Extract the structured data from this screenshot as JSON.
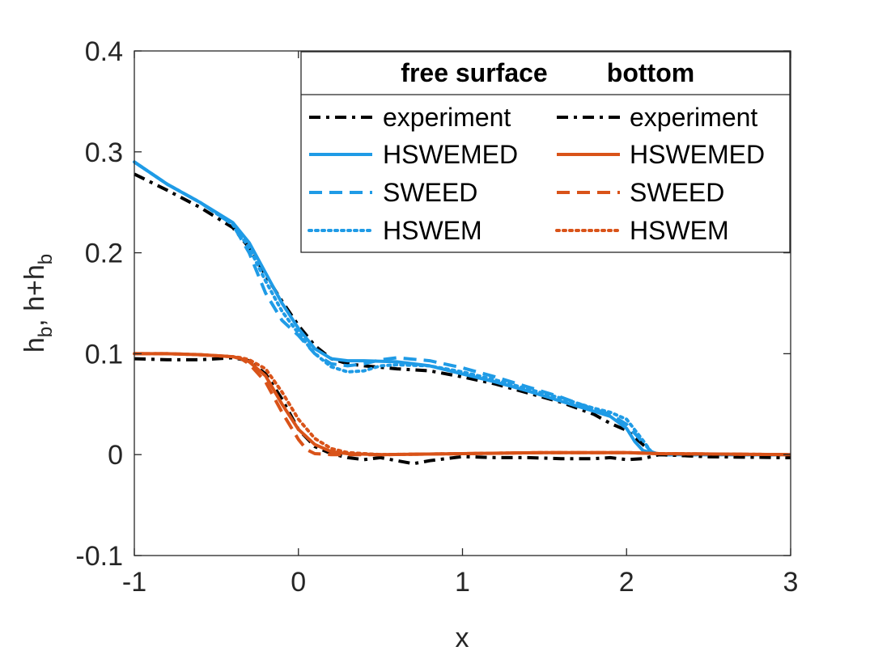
{
  "chart_data": {
    "type": "line",
    "title": "",
    "xlabel": "x",
    "ylabel_main": "h",
    "ylabel_sub1": "b",
    "ylabel_mid": ", h+h",
    "ylabel_sub2": "b",
    "xlim": [
      -1,
      3
    ],
    "ylim": [
      -0.1,
      0.4
    ],
    "xticks": [
      -1,
      0,
      1,
      2,
      3
    ],
    "xtick_labels": [
      "-1",
      "0",
      "1",
      "2",
      "3"
    ],
    "yticks": [
      -0.1,
      0,
      0.1,
      0.2,
      0.3,
      0.4
    ],
    "ytick_labels": [
      "-0.1",
      "0",
      "0.1",
      "0.2",
      "0.3",
      "0.4"
    ],
    "grid": false,
    "legend": {
      "placement": "top-right",
      "headers": [
        "free surface",
        "bottom"
      ],
      "rows": [
        "experiment",
        "HSWEMED",
        "SWEED",
        "HSWEM"
      ]
    },
    "colors": {
      "blue": "#1f9be6",
      "orange": "#d95319",
      "black": "#000000"
    },
    "series": [
      {
        "name": "experiment",
        "group": "free surface",
        "color": "#000000",
        "dash": "dashdot",
        "x": [
          -1,
          -0.8,
          -0.6,
          -0.4,
          -0.3,
          -0.2,
          -0.1,
          0,
          0.1,
          0.2,
          0.3,
          0.4,
          0.6,
          0.8,
          1.0,
          1.2,
          1.4,
          1.6,
          1.8,
          1.9,
          2.0,
          2.1,
          2.15,
          2.2,
          2.5,
          3.0
        ],
        "y": [
          0.278,
          0.262,
          0.245,
          0.225,
          0.205,
          0.178,
          0.152,
          0.128,
          0.108,
          0.095,
          0.09,
          0.088,
          0.085,
          0.083,
          0.077,
          0.07,
          0.061,
          0.052,
          0.04,
          0.031,
          0.024,
          0.01,
          0.002,
          0.0,
          -0.002,
          -0.003
        ]
      },
      {
        "name": "HSWEMED",
        "group": "free surface",
        "color": "#1f9be6",
        "dash": "solid",
        "x": [
          -1,
          -0.8,
          -0.6,
          -0.4,
          -0.3,
          -0.2,
          -0.1,
          0,
          0.1,
          0.2,
          0.3,
          0.4,
          0.6,
          0.8,
          1.0,
          1.2,
          1.4,
          1.6,
          1.8,
          1.9,
          2.0,
          2.05,
          2.1,
          2.2,
          3.0
        ],
        "y": [
          0.29,
          0.268,
          0.25,
          0.23,
          0.21,
          0.18,
          0.15,
          0.125,
          0.105,
          0.095,
          0.093,
          0.093,
          0.092,
          0.088,
          0.08,
          0.072,
          0.063,
          0.053,
          0.043,
          0.038,
          0.026,
          0.013,
          0.004,
          0.0,
          0.0
        ]
      },
      {
        "name": "SWEED",
        "group": "free surface",
        "color": "#1f9be6",
        "dash": "dashed",
        "x": [
          -1,
          -0.8,
          -0.6,
          -0.4,
          -0.3,
          -0.2,
          -0.1,
          0,
          0.1,
          0.2,
          0.3,
          0.4,
          0.5,
          0.6,
          0.8,
          1.0,
          1.2,
          1.4,
          1.6,
          1.8,
          1.9,
          2.0,
          2.1,
          2.15,
          2.2,
          3.0
        ],
        "y": [
          0.29,
          0.268,
          0.25,
          0.228,
          0.2,
          0.16,
          0.133,
          0.118,
          0.1,
          0.09,
          0.088,
          0.09,
          0.094,
          0.096,
          0.093,
          0.086,
          0.077,
          0.067,
          0.057,
          0.045,
          0.04,
          0.03,
          0.012,
          0.003,
          0.0,
          0.0
        ]
      },
      {
        "name": "HSWEM",
        "group": "free surface",
        "color": "#1f9be6",
        "dash": "dotted",
        "x": [
          -1,
          -0.8,
          -0.6,
          -0.4,
          -0.3,
          -0.2,
          -0.1,
          0,
          0.1,
          0.2,
          0.3,
          0.4,
          0.5,
          0.6,
          0.8,
          1.0,
          1.2,
          1.4,
          1.6,
          1.8,
          1.9,
          2.0,
          2.1,
          2.15,
          2.2,
          3.0
        ],
        "y": [
          0.29,
          0.268,
          0.25,
          0.228,
          0.205,
          0.172,
          0.142,
          0.12,
          0.1,
          0.087,
          0.082,
          0.083,
          0.088,
          0.089,
          0.088,
          0.082,
          0.074,
          0.065,
          0.056,
          0.046,
          0.042,
          0.035,
          0.014,
          0.003,
          0.0,
          0.0
        ]
      },
      {
        "name": "experiment",
        "group": "bottom",
        "color": "#000000",
        "dash": "dashdot",
        "x": [
          -1,
          -0.8,
          -0.6,
          -0.4,
          -0.3,
          -0.2,
          -0.1,
          0,
          0.1,
          0.2,
          0.3,
          0.4,
          0.5,
          0.6,
          0.7,
          0.8,
          1.0,
          1.2,
          1.4,
          1.6,
          1.8,
          1.9,
          2.0,
          2.1,
          2.2,
          2.5,
          3.0
        ],
        "y": [
          0.095,
          0.094,
          0.094,
          0.096,
          0.093,
          0.08,
          0.055,
          0.025,
          0.008,
          0.001,
          -0.003,
          -0.005,
          -0.003,
          -0.006,
          -0.009,
          -0.006,
          -0.002,
          -0.003,
          -0.003,
          -0.004,
          -0.004,
          -0.003,
          -0.005,
          -0.004,
          0.0,
          -0.002,
          -0.003
        ]
      },
      {
        "name": "HSWEMED",
        "group": "bottom",
        "color": "#d95319",
        "dash": "solid",
        "x": [
          -1,
          -0.8,
          -0.6,
          -0.4,
          -0.35,
          -0.3,
          -0.2,
          -0.1,
          0,
          0.1,
          0.2,
          0.3,
          0.5,
          1.0,
          1.5,
          2.0,
          2.2,
          3.0
        ],
        "y": [
          0.1,
          0.1,
          0.099,
          0.097,
          0.095,
          0.092,
          0.078,
          0.05,
          0.025,
          0.01,
          0.003,
          0.001,
          0.0,
          0.001,
          0.002,
          0.002,
          0.001,
          0.0
        ]
      },
      {
        "name": "SWEED",
        "group": "bottom",
        "color": "#d95319",
        "dash": "dashed",
        "x": [
          -1,
          -0.8,
          -0.6,
          -0.4,
          -0.35,
          -0.3,
          -0.2,
          -0.1,
          0,
          0.05,
          0.1,
          0.2,
          0.3,
          0.5,
          1.0,
          1.5,
          2.0,
          2.2,
          3.0
        ],
        "y": [
          0.1,
          0.1,
          0.099,
          0.097,
          0.095,
          0.09,
          0.072,
          0.042,
          0.015,
          0.005,
          0.001,
          0.0,
          0.0,
          0.0,
          0.001,
          0.002,
          0.002,
          0.001,
          0.0
        ]
      },
      {
        "name": "HSWEM",
        "group": "bottom",
        "color": "#d95319",
        "dash": "dotted",
        "x": [
          -1,
          -0.8,
          -0.6,
          -0.4,
          -0.35,
          -0.3,
          -0.2,
          -0.1,
          0,
          0.1,
          0.2,
          0.3,
          0.4,
          0.5,
          1.0,
          1.5,
          2.0,
          2.2,
          3.0
        ],
        "y": [
          0.1,
          0.1,
          0.099,
          0.097,
          0.096,
          0.094,
          0.085,
          0.062,
          0.035,
          0.016,
          0.006,
          0.002,
          0.001,
          0.0,
          0.001,
          0.002,
          0.002,
          0.001,
          0.0
        ]
      }
    ]
  }
}
